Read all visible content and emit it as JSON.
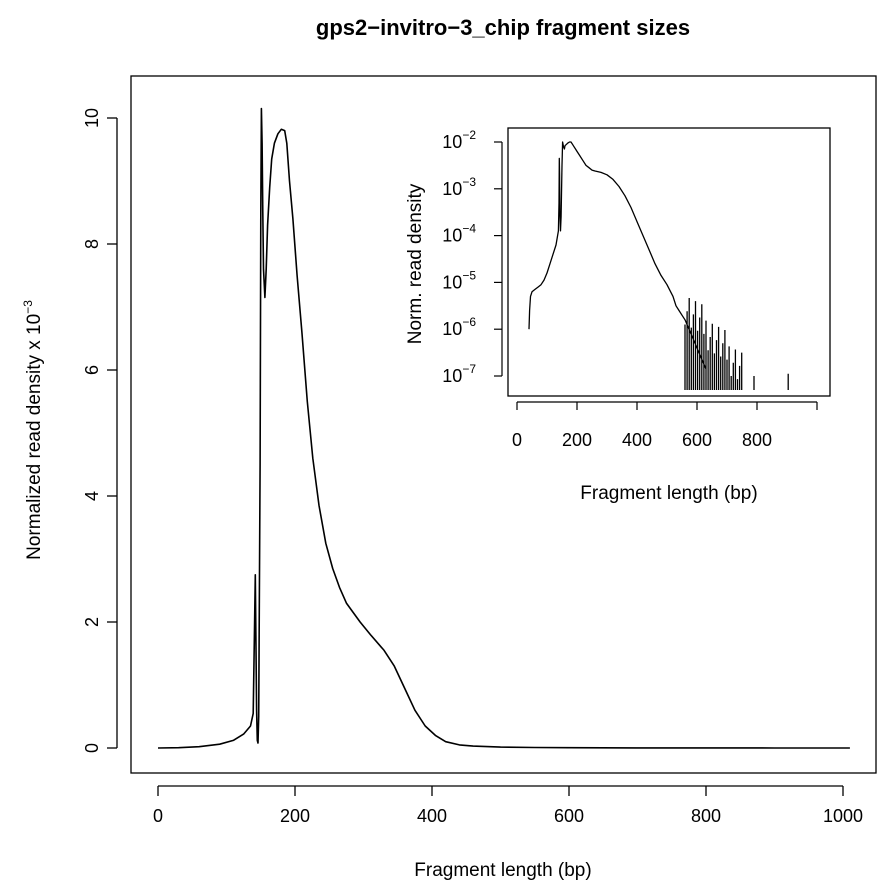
{
  "chart_data": [
    {
      "type": "line",
      "title": "gps2−invitro−3_chip fragment sizes",
      "xlabel": "Fragment length (bp)",
      "ylabel": "Normalized read density x 10",
      "ylabel_exponent": "−3",
      "xlim": [
        0,
        1010
      ],
      "ylim": [
        0,
        10.2
      ],
      "xticks": [
        0,
        200,
        400,
        600,
        800,
        1000
      ],
      "yticks": [
        0,
        2,
        4,
        6,
        8,
        10
      ],
      "grid": false,
      "series": [
        {
          "x": [
            0,
            30,
            60,
            90,
            110,
            125,
            135,
            139,
            141,
            142,
            143,
            144,
            145,
            146,
            147,
            149,
            150,
            151,
            152,
            153,
            154,
            156,
            158,
            160,
            163,
            166,
            170,
            175,
            180,
            185,
            188,
            192,
            197,
            203,
            210,
            218,
            226,
            235,
            245,
            255,
            265,
            275,
            285,
            295,
            310,
            330,
            345,
            360,
            375,
            390,
            405,
            420,
            440,
            460,
            500,
            550,
            600,
            700,
            800,
            900,
            1010
          ],
          "y": [
            0.0,
            0.005,
            0.02,
            0.06,
            0.12,
            0.22,
            0.35,
            0.55,
            2.0,
            2.75,
            1.6,
            0.6,
            0.12,
            0.08,
            0.5,
            4.5,
            8.5,
            10.15,
            9.6,
            8.5,
            7.6,
            7.15,
            7.6,
            8.3,
            8.9,
            9.35,
            9.6,
            9.75,
            9.82,
            9.8,
            9.6,
            9.0,
            8.4,
            7.5,
            6.6,
            5.5,
            4.6,
            3.85,
            3.25,
            2.85,
            2.55,
            2.3,
            2.15,
            2.0,
            1.8,
            1.55,
            1.3,
            0.95,
            0.6,
            0.35,
            0.2,
            0.1,
            0.05,
            0.03,
            0.015,
            0.008,
            0.005,
            0.002,
            0.001,
            0.0005,
            0.0
          ]
        }
      ]
    },
    {
      "type": "line",
      "title": "",
      "xlabel": "Fragment length (bp)",
      "ylabel": "Norm. read density",
      "scale_y": "log",
      "xlim": [
        -10,
        1060
      ],
      "ylim_exponents": [
        -7.3,
        -1.8
      ],
      "xticks": [
        0,
        200,
        400,
        600,
        800
      ],
      "xticks_unlabeled": [
        1000
      ],
      "yticks_exponents": [
        -7,
        -6,
        -5,
        -4,
        -3,
        -2
      ],
      "ytick_base": "10",
      "grid": false,
      "series": [
        {
          "x": [
            40,
            42,
            45,
            50,
            60,
            70,
            80,
            90,
            100,
            110,
            120,
            130,
            138,
            140,
            141,
            142,
            143,
            145,
            147,
            150,
            152,
            155,
            158,
            160,
            165,
            170,
            175,
            180,
            185,
            190,
            195,
            200,
            210,
            220,
            230,
            240,
            250,
            260,
            280,
            300,
            320,
            340,
            360,
            380,
            400,
            420,
            440,
            460,
            480,
            500,
            520,
            530,
            540,
            550,
            560,
            570,
            580,
            590,
            600,
            610,
            620,
            630
          ],
          "y": [
            -6.0,
            -5.6,
            -5.3,
            -5.2,
            -5.15,
            -5.1,
            -5.05,
            -4.95,
            -4.8,
            -4.6,
            -4.4,
            -4.2,
            -3.9,
            -3.3,
            -2.35,
            -2.7,
            -3.5,
            -3.9,
            -3.6,
            -2.5,
            -2.0,
            -2.1,
            -2.15,
            -2.08,
            -2.05,
            -2.02,
            -2.0,
            -2.0,
            -2.05,
            -2.1,
            -2.15,
            -2.2,
            -2.3,
            -2.4,
            -2.5,
            -2.55,
            -2.6,
            -2.62,
            -2.65,
            -2.7,
            -2.8,
            -2.95,
            -3.15,
            -3.4,
            -3.7,
            -4.0,
            -4.3,
            -4.6,
            -4.85,
            -5.05,
            -5.3,
            -5.5,
            -5.6,
            -5.7,
            -5.8,
            -5.95,
            -6.1,
            -6.25,
            -6.4,
            -6.55,
            -6.7,
            -6.85
          ]
        }
      ]
    }
  ]
}
